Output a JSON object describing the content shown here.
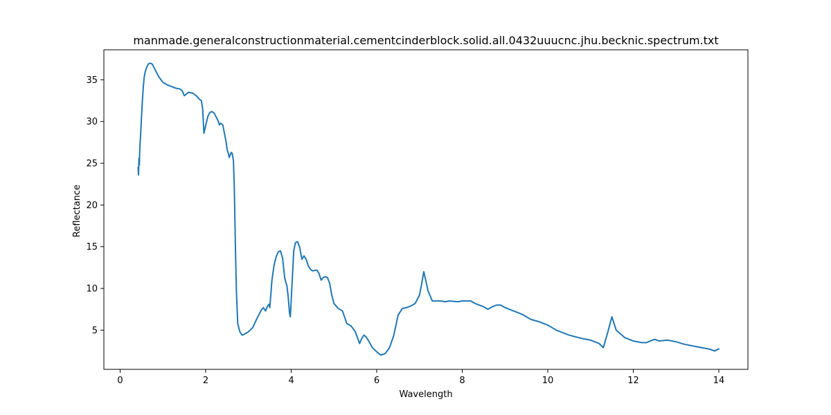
{
  "chart_data": {
    "type": "line",
    "title": "manmade.generalconstructionmaterial.cementcinderblock.solid.all.0432uuucnc.jhu.becknic.spectrum.txt",
    "xlabel": "Wavelength",
    "ylabel": "Reflectance",
    "xlim": [
      -0.38,
      14.68
    ],
    "ylim": [
      0.3,
      38.6
    ],
    "xticks": [
      0,
      2,
      4,
      6,
      8,
      10,
      12,
      14
    ],
    "yticks": [
      5,
      10,
      15,
      20,
      25,
      30,
      35
    ],
    "grid": false,
    "line_color": "#1f77b4",
    "series": [
      {
        "x": [
          0.42,
          0.43,
          0.44,
          0.45,
          0.46,
          0.48,
          0.5,
          0.52,
          0.54,
          0.56,
          0.58,
          0.6,
          0.63,
          0.66,
          0.7,
          0.75,
          0.8,
          0.85,
          0.9,
          1.0,
          1.1,
          1.2,
          1.3,
          1.4,
          1.45,
          1.5,
          1.55,
          1.6,
          1.7,
          1.8,
          1.85,
          1.9,
          1.93,
          1.96,
          2.0,
          2.05,
          2.1,
          2.15,
          2.2,
          2.25,
          2.28,
          2.3,
          2.32,
          2.35,
          2.4,
          2.45,
          2.48,
          2.5,
          2.53,
          2.55,
          2.6,
          2.62,
          2.65,
          2.67,
          2.7,
          2.72,
          2.75,
          2.8,
          2.85,
          2.9,
          3.0,
          3.1,
          3.2,
          3.3,
          3.35,
          3.4,
          3.45,
          3.48,
          3.5,
          3.55,
          3.6,
          3.65,
          3.7,
          3.75,
          3.8,
          3.85,
          3.9,
          3.93,
          3.96,
          3.98,
          4.0,
          4.03,
          4.06,
          4.1,
          4.15,
          4.2,
          4.25,
          4.3,
          4.35,
          4.4,
          4.45,
          4.5,
          4.6,
          4.65,
          4.7,
          4.75,
          4.8,
          4.85,
          4.9,
          4.95,
          5.0,
          5.1,
          5.2,
          5.3,
          5.4,
          5.5,
          5.6,
          5.65,
          5.7,
          5.75,
          5.8,
          5.9,
          6.0,
          6.1,
          6.2,
          6.3,
          6.4,
          6.5,
          6.6,
          6.7,
          6.8,
          6.9,
          7.0,
          7.05,
          7.1,
          7.15,
          7.2,
          7.3,
          7.5,
          7.6,
          7.7,
          7.9,
          8.0,
          8.1,
          8.2,
          8.3,
          8.5,
          8.6,
          8.7,
          8.8,
          8.9,
          9.0,
          9.2,
          9.4,
          9.6,
          9.8,
          10.0,
          10.2,
          10.5,
          10.8,
          11.0,
          11.2,
          11.3,
          11.4,
          11.5,
          11.6,
          11.8,
          12.0,
          12.2,
          12.3,
          12.4,
          12.5,
          12.6,
          12.8,
          13.0,
          13.2,
          13.4,
          13.6,
          13.8,
          13.9,
          14.0
        ],
        "y": [
          24.5,
          23.6,
          25.6,
          24.8,
          26.8,
          28.5,
          30.5,
          32.5,
          34.0,
          35.2,
          35.8,
          36.2,
          36.6,
          36.9,
          37.0,
          36.9,
          36.4,
          35.9,
          35.4,
          34.7,
          34.4,
          34.2,
          34.0,
          33.9,
          33.7,
          33.1,
          33.3,
          33.5,
          33.4,
          33.0,
          32.7,
          32.5,
          31.5,
          28.6,
          29.5,
          30.6,
          31.1,
          31.2,
          31.0,
          30.5,
          30.2,
          30.0,
          29.6,
          29.8,
          29.6,
          28.3,
          27.5,
          26.7,
          26.2,
          25.7,
          26.3,
          26.2,
          25.3,
          22.0,
          14.0,
          9.5,
          5.8,
          4.8,
          4.4,
          4.5,
          4.8,
          5.3,
          6.4,
          7.4,
          7.7,
          7.3,
          7.9,
          8.1,
          7.7,
          11.0,
          12.8,
          13.8,
          14.4,
          14.5,
          13.6,
          11.2,
          10.3,
          9.0,
          7.1,
          6.6,
          8.5,
          11.5,
          14.5,
          15.5,
          15.6,
          14.9,
          13.5,
          13.9,
          13.5,
          12.7,
          12.3,
          12.1,
          12.2,
          11.8,
          11.0,
          11.3,
          11.4,
          11.3,
          10.6,
          9.2,
          8.2,
          7.6,
          7.3,
          5.8,
          5.5,
          4.8,
          3.4,
          4.0,
          4.4,
          4.2,
          3.8,
          2.9,
          2.4,
          2.0,
          2.2,
          2.9,
          4.4,
          6.8,
          7.6,
          7.7,
          7.9,
          8.2,
          9.2,
          10.5,
          12.0,
          10.9,
          9.7,
          8.5,
          8.5,
          8.4,
          8.5,
          8.4,
          8.5,
          8.5,
          8.5,
          8.2,
          7.8,
          7.5,
          7.8,
          8.0,
          8.0,
          7.7,
          7.3,
          6.9,
          6.3,
          6.0,
          5.6,
          5.0,
          4.4,
          4.0,
          3.8,
          3.4,
          2.9,
          4.7,
          6.6,
          5.0,
          4.1,
          3.7,
          3.5,
          3.5,
          3.7,
          3.9,
          3.7,
          3.8,
          3.6,
          3.3,
          3.1,
          2.9,
          2.7,
          2.5,
          2.75
        ]
      }
    ]
  }
}
